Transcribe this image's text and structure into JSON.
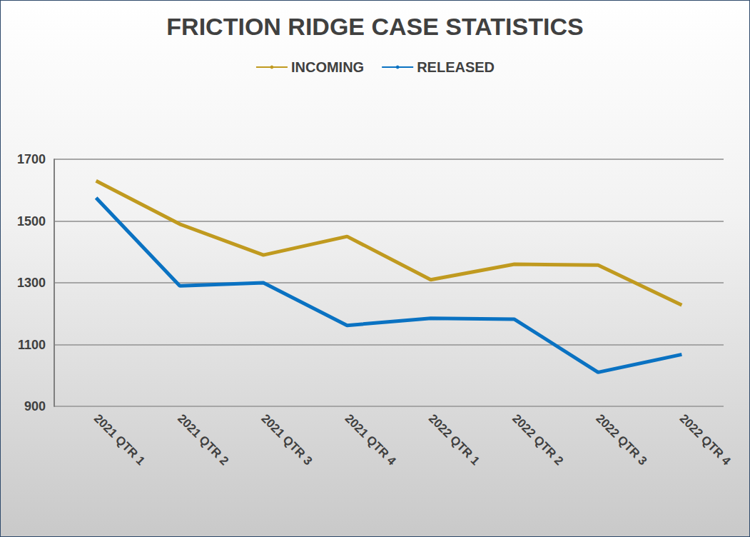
{
  "chart_data": {
    "type": "line",
    "title": "FRICTION RIDGE CASE STATISTICS",
    "categories": [
      "2021 QTR 1",
      "2021 QTR 2",
      "2021 QTR 3",
      "2021 QTR 4",
      "2022 QTR 1",
      "2022 QTR 2",
      "2022 QTR 3",
      "2022 QTR 4"
    ],
    "series": [
      {
        "name": "INCOMING",
        "color": "#C09A1F",
        "values": [
          1630,
          1490,
          1390,
          1450,
          1310,
          1360,
          1357,
          1228
        ]
      },
      {
        "name": "RELEASED",
        "color": "#0A72C2",
        "values": [
          1575,
          1290,
          1300,
          1162,
          1185,
          1182,
          1010,
          1068
        ]
      }
    ],
    "ylim": [
      900,
      1700
    ],
    "yticks": [
      900,
      1100,
      1300,
      1500,
      1700
    ],
    "grid": true,
    "legend": "top"
  }
}
